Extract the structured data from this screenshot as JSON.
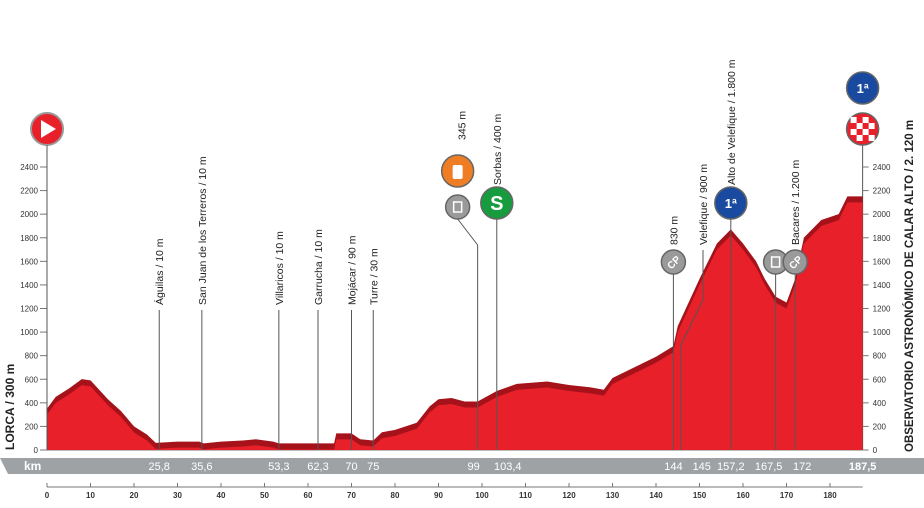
{
  "chart_data": {
    "type": "area",
    "xlabel": "km",
    "xlim": [
      0,
      187.5
    ],
    "ylim": [
      0,
      2400
    ],
    "x_ticks": [
      0,
      10,
      20,
      30,
      40,
      50,
      60,
      70,
      80,
      90,
      100,
      110,
      120,
      130,
      140,
      150,
      160,
      170,
      180
    ],
    "y_ticks": [
      0,
      200,
      400,
      600,
      800,
      1000,
      1200,
      1400,
      1600,
      1800,
      2000,
      2200,
      2400
    ],
    "start_label": "LORCA / 300 m",
    "finish_label": "OBSERVATORIO ASTRONÓMICO DE CALAR ALTO / 2. 120 m",
    "profile": [
      [
        0,
        300
      ],
      [
        2,
        400
      ],
      [
        5,
        470
      ],
      [
        8,
        550
      ],
      [
        10,
        540
      ],
      [
        14,
        380
      ],
      [
        17,
        280
      ],
      [
        20,
        150
      ],
      [
        23,
        80
      ],
      [
        25,
        10
      ],
      [
        30,
        20
      ],
      [
        35,
        20
      ],
      [
        36,
        5
      ],
      [
        40,
        20
      ],
      [
        45,
        30
      ],
      [
        48,
        40
      ],
      [
        52,
        20
      ],
      [
        53.3,
        5
      ],
      [
        62.3,
        5
      ],
      [
        66,
        5
      ],
      [
        66.5,
        90
      ],
      [
        70,
        90
      ],
      [
        72,
        40
      ],
      [
        75,
        30
      ],
      [
        77,
        100
      ],
      [
        80,
        120
      ],
      [
        85,
        180
      ],
      [
        88,
        320
      ],
      [
        90,
        380
      ],
      [
        93,
        390
      ],
      [
        96,
        360
      ],
      [
        99,
        360
      ],
      [
        103.4,
        450
      ],
      [
        108,
        510
      ],
      [
        115,
        530
      ],
      [
        120,
        500
      ],
      [
        125,
        480
      ],
      [
        128,
        460
      ],
      [
        130,
        560
      ],
      [
        135,
        650
      ],
      [
        140,
        740
      ],
      [
        144,
        830
      ],
      [
        145,
        1000
      ],
      [
        150,
        1400
      ],
      [
        154,
        1700
      ],
      [
        157.2,
        1820
      ],
      [
        160,
        1700
      ],
      [
        163,
        1550
      ],
      [
        165,
        1400
      ],
      [
        167.5,
        1250
      ],
      [
        170,
        1200
      ],
      [
        172,
        1400
      ],
      [
        174,
        1750
      ],
      [
        178,
        1900
      ],
      [
        182,
        1950
      ],
      [
        184,
        2100
      ],
      [
        187.5,
        2100
      ]
    ],
    "points": [
      {
        "km": 25.8,
        "km_label": "25,8",
        "label": "Águilas / 10 m"
      },
      {
        "km": 35.6,
        "km_label": "35,6",
        "label": "San Juan de los Terreros / 10 m"
      },
      {
        "km": 53.3,
        "km_label": "53,3",
        "label": "Villaricos / 10 m"
      },
      {
        "km": 62.3,
        "km_label": "62,3",
        "label": "Garrucha / 10 m"
      },
      {
        "km": 70,
        "km_label": "70",
        "label": "Mojácar / 90 m"
      },
      {
        "km": 75,
        "km_label": "75",
        "label": "Turre / 30 m"
      },
      {
        "km": 99,
        "km_label": "99",
        "label": "345 m",
        "icon": "feed-zone-icon",
        "icon2": "waste-zone-icon"
      },
      {
        "km": 103.4,
        "km_label": "103,4",
        "label": "Sorbas / 400 m",
        "icon": "sprint-icon"
      },
      {
        "km": 144,
        "km_label": "144",
        "label": "830 m",
        "icon": "checkpoint-icon"
      },
      {
        "km": 145,
        "km_label": "145",
        "label": "Velefique / 900 m"
      },
      {
        "km": 157.2,
        "km_label": "157,2",
        "label": "Alto de Velefique / 1.800 m",
        "icon": "category-1-climb-icon",
        "icon_text": "1ª"
      },
      {
        "km": 167.5,
        "km_label": "167,5",
        "icon": "waste-zone-icon"
      },
      {
        "km": 172,
        "km_label": "172",
        "label": "Bacares / 1.200 m",
        "icon": "checkpoint-icon"
      },
      {
        "km": 187.5,
        "km_label": "187,5",
        "icon": "finish-icon",
        "icon2": "category-1-climb-icon",
        "icon_text": "1ª"
      }
    ],
    "sprint_letter": "S",
    "checkpoint_text": "CP",
    "colors": {
      "fill": "#e8202a",
      "shadow": "#a6121a",
      "bar": "#9ea2a5",
      "blue": "#1a4aa0",
      "green": "#169b3e",
      "orange": "#ef7d23",
      "grey": "#9a9a9a"
    }
  }
}
